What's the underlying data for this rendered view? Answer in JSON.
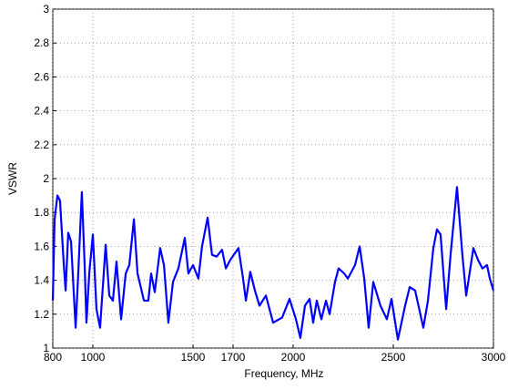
{
  "chart_data": {
    "type": "line",
    "xlabel": "Frequency, MHz",
    "ylabel": "VSWR",
    "x": [
      800,
      809,
      823,
      836,
      855,
      864,
      877,
      891,
      914,
      927,
      945,
      959,
      968,
      982,
      1000,
      1018,
      1036,
      1064,
      1082,
      1100,
      1118,
      1141,
      1164,
      1182,
      1205,
      1223,
      1255,
      1277,
      1291,
      1309,
      1336,
      1355,
      1377,
      1400,
      1427,
      1459,
      1477,
      1500,
      1527,
      1545,
      1573,
      1595,
      1618,
      1645,
      1664,
      1686,
      1727,
      1750,
      1764,
      1786,
      1809,
      1832,
      1864,
      1900,
      1945,
      1982,
      2014,
      2036,
      2059,
      2082,
      2100,
      2118,
      2141,
      2164,
      2182,
      2209,
      2227,
      2255,
      2273,
      2309,
      2332,
      2355,
      2377,
      2400,
      2436,
      2468,
      2491,
      2523,
      2559,
      2582,
      2609,
      2650,
      2673,
      2700,
      2718,
      2736,
      2764,
      2786,
      2818,
      2845,
      2864,
      2900,
      2923,
      2945,
      2968,
      2982,
      3000
    ],
    "series": [
      {
        "name": "VSWR",
        "color": "#0000ff",
        "values": [
          1.28,
          1.76,
          1.9,
          1.87,
          1.49,
          1.34,
          1.68,
          1.63,
          1.12,
          1.44,
          1.92,
          1.49,
          1.15,
          1.44,
          1.67,
          1.23,
          1.12,
          1.61,
          1.31,
          1.28,
          1.51,
          1.17,
          1.44,
          1.49,
          1.76,
          1.44,
          1.28,
          1.28,
          1.44,
          1.33,
          1.59,
          1.49,
          1.15,
          1.39,
          1.47,
          1.65,
          1.44,
          1.49,
          1.41,
          1.6,
          1.77,
          1.55,
          1.54,
          1.58,
          1.47,
          1.52,
          1.59,
          1.41,
          1.28,
          1.45,
          1.34,
          1.25,
          1.31,
          1.15,
          1.18,
          1.29,
          1.17,
          1.06,
          1.25,
          1.29,
          1.15,
          1.28,
          1.17,
          1.28,
          1.2,
          1.39,
          1.47,
          1.44,
          1.41,
          1.49,
          1.6,
          1.41,
          1.12,
          1.39,
          1.25,
          1.17,
          1.29,
          1.05,
          1.25,
          1.36,
          1.34,
          1.12,
          1.28,
          1.59,
          1.7,
          1.67,
          1.23,
          1.55,
          1.95,
          1.55,
          1.31,
          1.59,
          1.52,
          1.47,
          1.49,
          1.41,
          1.34
        ]
      }
    ],
    "xlim": [
      800,
      3000
    ],
    "xticks": [
      800,
      1000,
      1500,
      1700,
      2000,
      2500,
      3000
    ],
    "ylim": [
      1,
      3
    ],
    "yticks": [
      1,
      1.2,
      1.4,
      1.6,
      1.8,
      2,
      2.2,
      2.4,
      2.6,
      2.8,
      3
    ],
    "grid": true
  }
}
